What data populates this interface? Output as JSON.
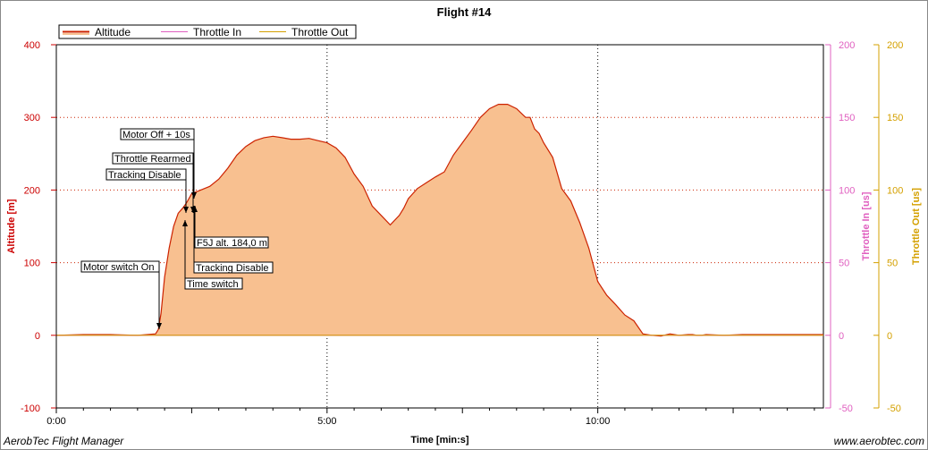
{
  "chart_data": {
    "type": "area",
    "title": "Flight #14",
    "xlabel": "Time [min:s]",
    "xlim_seconds": [
      0,
      850
    ],
    "x_ticks": [
      {
        "value": 0,
        "label": "0:00"
      },
      {
        "value": 300,
        "label": "5:00"
      },
      {
        "value": 600,
        "label": "10:00"
      }
    ],
    "grid": true,
    "legend_position": "top-left",
    "axes": {
      "altitude": {
        "label": "Altitude [m]",
        "range": [
          -100,
          400
        ],
        "ticks": [
          "400",
          "300",
          "200",
          "100",
          "0",
          "-100"
        ],
        "color": "#cc0000"
      },
      "throttle_in": {
        "label": "Throttle In [us]",
        "range": [
          -50,
          200
        ],
        "ticks": [
          "200",
          "150",
          "100",
          "50",
          "0",
          "-50"
        ],
        "color": "#e060c0"
      },
      "throttle_out": {
        "label": "Throttle Out [us]",
        "range": [
          -50,
          200
        ],
        "ticks": [
          "200",
          "150",
          "100",
          "50",
          "0",
          "-50"
        ],
        "color": "#d4a000"
      }
    },
    "series": [
      {
        "name": "Altitude",
        "color": "#cc2200",
        "fill": "#f8c090",
        "x": [
          0,
          30,
          60,
          90,
          110,
          113,
          116,
          120,
          125,
          130,
          135,
          140,
          143,
          145,
          150,
          160,
          170,
          180,
          190,
          200,
          210,
          220,
          230,
          240,
          250,
          260,
          270,
          280,
          290,
          300,
          310,
          320,
          330,
          340,
          350,
          360,
          370,
          380,
          385,
          390,
          395,
          400,
          410,
          420,
          430,
          440,
          450,
          460,
          470,
          480,
          490,
          500,
          510,
          520,
          525,
          530,
          535,
          540,
          550,
          560,
          570,
          580,
          590,
          600,
          610,
          620,
          630,
          640,
          650,
          660,
          670,
          680,
          690,
          700,
          705,
          710,
          715,
          720,
          740,
          760,
          780,
          800,
          820,
          840,
          850
        ],
        "y": [
          0,
          1,
          1,
          0,
          2,
          8,
          30,
          80,
          120,
          150,
          168,
          175,
          180,
          184,
          195,
          200,
          205,
          215,
          230,
          248,
          260,
          268,
          272,
          274,
          272,
          270,
          270,
          271,
          268,
          265,
          258,
          245,
          222,
          205,
          178,
          165,
          152,
          165,
          175,
          188,
          195,
          202,
          210,
          218,
          225,
          248,
          265,
          282,
          300,
          312,
          318,
          318,
          312,
          300,
          300,
          284,
          278,
          265,
          245,
          202,
          185,
          155,
          120,
          74,
          55,
          42,
          28,
          20,
          2,
          0,
          -1,
          2,
          0,
          1,
          1,
          0,
          0,
          1,
          0,
          1,
          1,
          1,
          1,
          1,
          1
        ]
      },
      {
        "name": "Throttle In",
        "color": "#e060c0",
        "x": [
          0,
          850
        ],
        "y": [
          0,
          0
        ]
      },
      {
        "name": "Throttle Out",
        "color": "#d4a000",
        "x": [
          0,
          850
        ],
        "y": [
          0,
          0
        ]
      }
    ],
    "annotations": [
      {
        "text": "Motor switch On",
        "x": 113,
        "y": 0
      },
      {
        "text": "Tracking Disable",
        "x": 143,
        "y": 170
      },
      {
        "text": "Throttle Rearmed",
        "x": 145,
        "y": 170
      },
      {
        "text": "Motor Off + 10s",
        "x": 155,
        "y": 190
      },
      {
        "text": "F5J alt. 184,0 m",
        "x": 155,
        "y": 184
      },
      {
        "text": "Tracking Disable",
        "x": 155,
        "y": 184
      },
      {
        "text": "Time switch",
        "x": 145,
        "y": 155
      }
    ]
  },
  "footer": {
    "left": "AerobTec Flight Manager",
    "right": "www.aerobtec.com"
  }
}
